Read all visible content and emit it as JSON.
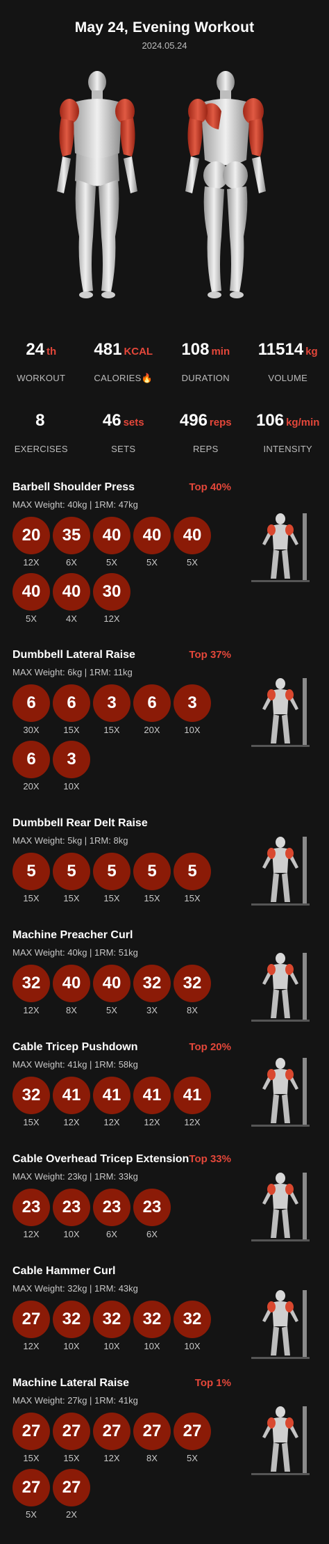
{
  "header": {
    "title": "May 24, Evening Workout",
    "date": "2024.05.24"
  },
  "stats_row1": [
    {
      "num": "24",
      "unit": "th",
      "label": "WORKOUT"
    },
    {
      "num": "481",
      "unit": "KCAL",
      "label": "CALORIES🔥"
    },
    {
      "num": "108",
      "unit": "min",
      "label": "DURATION"
    },
    {
      "num": "11514",
      "unit": "kg",
      "label": "VOLUME"
    }
  ],
  "stats_row2": [
    {
      "num": "8",
      "unit": "",
      "label": "EXERCISES"
    },
    {
      "num": "46",
      "unit": "sets",
      "label": "SETS"
    },
    {
      "num": "496",
      "unit": "reps",
      "label": "REPS"
    },
    {
      "num": "106",
      "unit": "kg/min",
      "label": "INTENSITY"
    }
  ],
  "exercises": [
    {
      "name": "Barbell Shoulder Press",
      "top": "Top 40%",
      "sub": "MAX Weight: 40kg  |  1RM: 47kg",
      "image": "barbell-press-icon",
      "sets": [
        [
          "20",
          "12X"
        ],
        [
          "35",
          "6X"
        ],
        [
          "40",
          "5X"
        ],
        [
          "40",
          "5X"
        ],
        [
          "40",
          "5X"
        ],
        [
          "40",
          "5X"
        ],
        [
          "40",
          "4X"
        ],
        [
          "30",
          "12X"
        ]
      ]
    },
    {
      "name": "Dumbbell Lateral Raise",
      "top": "Top 37%",
      "sub": "MAX Weight: 6kg  |  1RM: 11kg",
      "image": "dumbbell-lateral-icon",
      "sets": [
        [
          "6",
          "30X"
        ],
        [
          "6",
          "15X"
        ],
        [
          "3",
          "15X"
        ],
        [
          "6",
          "20X"
        ],
        [
          "3",
          "10X"
        ],
        [
          "6",
          "20X"
        ],
        [
          "3",
          "10X"
        ]
      ]
    },
    {
      "name": "Dumbbell Rear Delt Raise",
      "top": "",
      "sub": "MAX Weight: 5kg  |  1RM: 8kg",
      "image": "rear-delt-icon",
      "sets": [
        [
          "5",
          "15X"
        ],
        [
          "5",
          "15X"
        ],
        [
          "5",
          "15X"
        ],
        [
          "5",
          "15X"
        ],
        [
          "5",
          "15X"
        ]
      ]
    },
    {
      "name": "Machine Preacher Curl",
      "top": "",
      "sub": "MAX Weight: 40kg  |  1RM: 51kg",
      "image": "preacher-curl-icon",
      "sets": [
        [
          "32",
          "12X"
        ],
        [
          "40",
          "8X"
        ],
        [
          "40",
          "5X"
        ],
        [
          "32",
          "3X"
        ],
        [
          "32",
          "8X"
        ]
      ]
    },
    {
      "name": "Cable Tricep Pushdown",
      "top": "Top 20%",
      "sub": "MAX Weight: 41kg  |  1RM: 58kg",
      "image": "tricep-pushdown-icon",
      "sets": [
        [
          "32",
          "15X"
        ],
        [
          "41",
          "12X"
        ],
        [
          "41",
          "12X"
        ],
        [
          "41",
          "12X"
        ],
        [
          "41",
          "12X"
        ]
      ]
    },
    {
      "name": "Cable Overhead Tricep Extension",
      "top": "Top 33%",
      "sub": "MAX Weight: 23kg  |  1RM: 33kg",
      "image": "overhead-extension-icon",
      "sets": [
        [
          "23",
          "12X"
        ],
        [
          "23",
          "10X"
        ],
        [
          "23",
          "6X"
        ],
        [
          "23",
          "6X"
        ]
      ]
    },
    {
      "name": "Cable Hammer Curl",
      "top": "",
      "sub": "MAX Weight: 32kg  |  1RM: 43kg",
      "image": "hammer-curl-icon",
      "sets": [
        [
          "27",
          "12X"
        ],
        [
          "32",
          "10X"
        ],
        [
          "32",
          "10X"
        ],
        [
          "32",
          "10X"
        ],
        [
          "32",
          "10X"
        ]
      ]
    },
    {
      "name": "Machine Lateral Raise",
      "top": "Top 1%",
      "sub": "MAX Weight: 27kg  |  1RM: 41kg",
      "image": "machine-lateral-icon",
      "sets": [
        [
          "27",
          "15X"
        ],
        [
          "27",
          "15X"
        ],
        [
          "27",
          "12X"
        ],
        [
          "27",
          "8X"
        ],
        [
          "27",
          "5X"
        ],
        [
          "27",
          "5X"
        ],
        [
          "27",
          "2X"
        ]
      ]
    }
  ],
  "colors": {
    "background": "#141414",
    "accent": "#e4473a",
    "circle": "#8b1b07",
    "muscle": "#d9482f"
  }
}
